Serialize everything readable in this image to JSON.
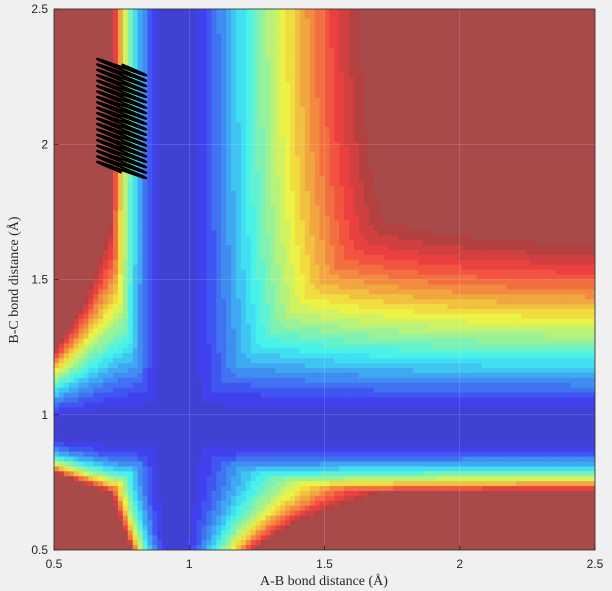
{
  "chart_data": {
    "type": "contour",
    "xlabel": "A-B bond distance (Å)",
    "ylabel": "B-C bond distance (Å)",
    "xlim": [
      0.5,
      2.5
    ],
    "ylim": [
      0.5,
      2.5
    ],
    "x_ticks": [
      0.5,
      1,
      1.5,
      2,
      2.5
    ],
    "x_tick_labels": [
      "0.5",
      "1",
      "1.5",
      "2",
      "2.5"
    ],
    "y_ticks": [
      0.5,
      1,
      1.5,
      2,
      2.5
    ],
    "y_tick_labels": [
      "0.5",
      "1",
      "1.5",
      "2",
      "2.5"
    ],
    "grid": true,
    "colormap": "jet",
    "trajectory_color": "#000000",
    "trajectory": {
      "start": [
        0.66,
        2.33
      ],
      "end": [
        0.84,
        1.93
      ],
      "oscillation_x_range": [
        0.66,
        0.84
      ],
      "oscillations": 20
    }
  }
}
